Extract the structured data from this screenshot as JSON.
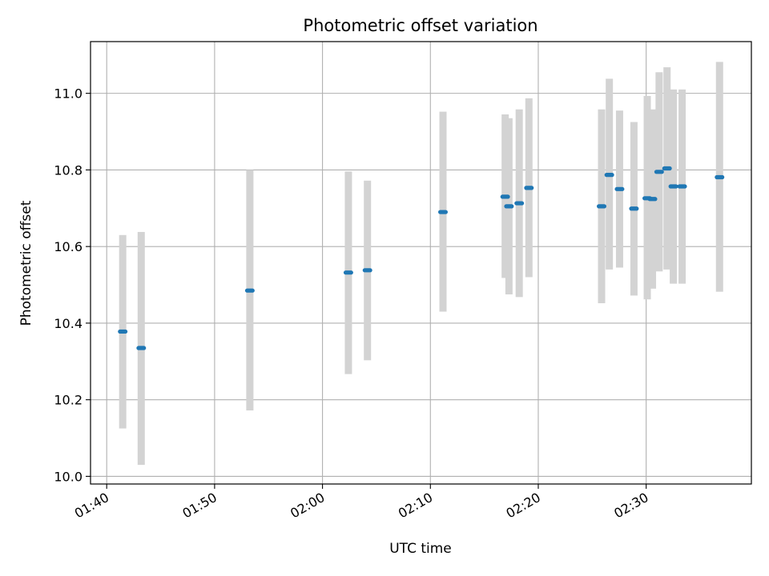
{
  "chart_data": {
    "type": "scatter",
    "title": "Photometric offset variation",
    "xlabel": "UTC time",
    "ylabel": "Photometric offset",
    "x_ticks": [
      "01:40",
      "01:50",
      "02:00",
      "02:10",
      "02:20",
      "02:30"
    ],
    "y_ticks": [
      "10.0",
      "10.2",
      "10.4",
      "10.6",
      "10.8",
      "11.0"
    ],
    "xlim": [
      "01:38:30",
      "02:39:45"
    ],
    "ylim": [
      9.98,
      11.135
    ],
    "grid": true,
    "colors": {
      "points": "#1f77b4",
      "errorbars": "#d3d3d3",
      "grid": "#b0b0b0"
    },
    "series": [
      {
        "points": [
          {
            "x": "01:41:29",
            "y": 10.378,
            "y_low": 10.125,
            "y_high": 10.63
          },
          {
            "x": "01:43:12",
            "y": 10.335,
            "y_low": 10.03,
            "y_high": 10.638
          },
          {
            "x": "01:53:16",
            "y": 10.485,
            "y_low": 10.172,
            "y_high": 10.8
          },
          {
            "x": "02:02:24",
            "y": 10.532,
            "y_low": 10.267,
            "y_high": 10.796
          },
          {
            "x": "02:04:10",
            "y": 10.538,
            "y_low": 10.303,
            "y_high": 10.772
          },
          {
            "x": "02:11:10",
            "y": 10.69,
            "y_low": 10.43,
            "y_high": 10.952
          },
          {
            "x": "02:16:56",
            "y": 10.73,
            "y_low": 10.518,
            "y_high": 10.945
          },
          {
            "x": "02:17:17",
            "y": 10.705,
            "y_low": 10.475,
            "y_high": 10.935
          },
          {
            "x": "02:18:14",
            "y": 10.713,
            "y_low": 10.468,
            "y_high": 10.958
          },
          {
            "x": "02:19:08",
            "y": 10.753,
            "y_low": 10.52,
            "y_high": 10.987
          },
          {
            "x": "02:25:52",
            "y": 10.705,
            "y_low": 10.452,
            "y_high": 10.958
          },
          {
            "x": "02:26:35",
            "y": 10.787,
            "y_low": 10.54,
            "y_high": 11.038
          },
          {
            "x": "02:27:32",
            "y": 10.75,
            "y_low": 10.545,
            "y_high": 10.955
          },
          {
            "x": "02:28:52",
            "y": 10.699,
            "y_low": 10.472,
            "y_high": 10.925
          },
          {
            "x": "02:30:06",
            "y": 10.726,
            "y_low": 10.462,
            "y_high": 10.993
          },
          {
            "x": "02:30:35",
            "y": 10.724,
            "y_low": 10.49,
            "y_high": 10.958
          },
          {
            "x": "02:31:12",
            "y": 10.795,
            "y_low": 10.535,
            "y_high": 11.055
          },
          {
            "x": "02:31:56",
            "y": 10.804,
            "y_low": 10.54,
            "y_high": 11.068
          },
          {
            "x": "02:32:31",
            "y": 10.757,
            "y_low": 10.503,
            "y_high": 11.01
          },
          {
            "x": "02:33:20",
            "y": 10.757,
            "y_low": 10.503,
            "y_high": 11.01
          },
          {
            "x": "02:36:48",
            "y": 10.781,
            "y_low": 10.482,
            "y_high": 11.082
          }
        ]
      }
    ]
  }
}
